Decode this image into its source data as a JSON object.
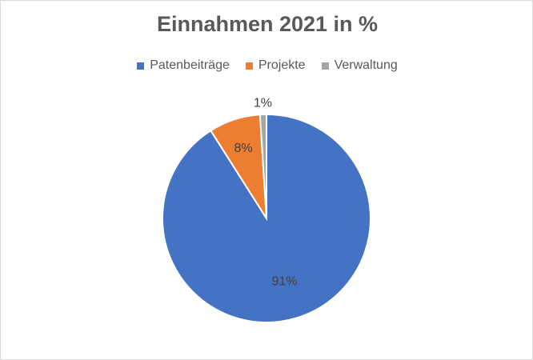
{
  "chart_data": {
    "type": "pie",
    "title": "Einnahmen 2021 in %",
    "categories": [
      "Patenbeiträge",
      "Projekte",
      "Verwaltung"
    ],
    "values": [
      91,
      8,
      1
    ],
    "labels": [
      "91%",
      "8%",
      "1%"
    ],
    "colors": [
      "#4472c4",
      "#ed7d31",
      "#a5a5a5"
    ],
    "legend_position": "top",
    "start_angle_deg": 0,
    "direction": "clockwise"
  }
}
